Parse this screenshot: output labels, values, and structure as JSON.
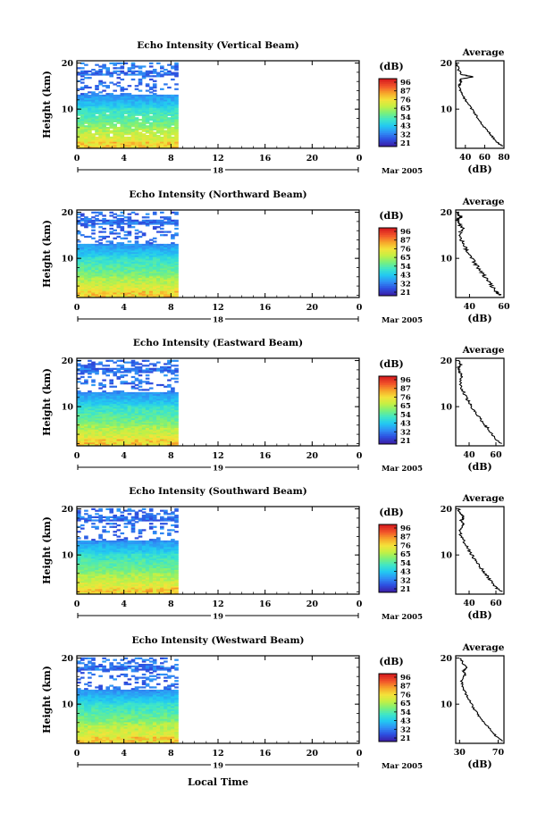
{
  "figure": {
    "x_axis_label": "Local Time",
    "month_label": "Mar 2005",
    "colorbar_unit": "(dB)",
    "colormap": [
      "#3b1fa8",
      "#2d4fe0",
      "#2f8ff5",
      "#22c8f2",
      "#3fe6c8",
      "#7bf07a",
      "#c6f043",
      "#f5e23a",
      "#f7a52a",
      "#f2552a",
      "#d81f1f"
    ]
  },
  "chart_data": [
    {
      "type": "heatmap",
      "title": "Echo Intensity (Vertical Beam)",
      "ylabel": "Height (km)",
      "x_ticks": [
        "0",
        "4",
        "8",
        "12",
        "16",
        "20",
        "0"
      ],
      "y_ticks": [
        "20",
        "10"
      ],
      "date_label": "18",
      "colorbar_ticks": [
        "96",
        "87",
        "76",
        "65",
        "54",
        "43",
        "32",
        "21"
      ],
      "data_extent_hours": 8.6,
      "xlim": [
        0,
        24
      ],
      "ylim": [
        1.5,
        20.5
      ],
      "profile": {
        "title": "Average",
        "xlabel": "(dB)",
        "x_ticks": [
          "40",
          "60",
          "80"
        ],
        "xlim": [
          30,
          80
        ],
        "points": [
          [
            78,
            2
          ],
          [
            72,
            3
          ],
          [
            66,
            4.5
          ],
          [
            60,
            6
          ],
          [
            55,
            7.5
          ],
          [
            50,
            9
          ],
          [
            45,
            10.5
          ],
          [
            40,
            12
          ],
          [
            36,
            13.5
          ],
          [
            33,
            15
          ],
          [
            36,
            15.8
          ],
          [
            34,
            16.5
          ],
          [
            48,
            17
          ],
          [
            36,
            17.5
          ],
          [
            33,
            18.5
          ],
          [
            31,
            20
          ]
        ]
      }
    },
    {
      "type": "heatmap",
      "title": "Echo Intensity (Northward Beam)",
      "ylabel": "Height (km)",
      "x_ticks": [
        "0",
        "4",
        "8",
        "12",
        "16",
        "20",
        "0"
      ],
      "y_ticks": [
        "20",
        "10"
      ],
      "date_label": "18",
      "colorbar_ticks": [
        "96",
        "87",
        "76",
        "65",
        "54",
        "43",
        "32",
        "21"
      ],
      "data_extent_hours": 8.6,
      "xlim": [
        0,
        24
      ],
      "ylim": [
        1.5,
        20.5
      ],
      "profile": {
        "title": "Average",
        "xlabel": "(dB)",
        "x_ticks": [
          "40",
          "60"
        ],
        "xlim": [
          32,
          60
        ],
        "points": [
          [
            58,
            2
          ],
          [
            55,
            3
          ],
          [
            52,
            4.5
          ],
          [
            49,
            6
          ],
          [
            46,
            7.5
          ],
          [
            43,
            9
          ],
          [
            41,
            10.5
          ],
          [
            38,
            12
          ],
          [
            36,
            13.5
          ],
          [
            34,
            15
          ],
          [
            36,
            16.5
          ],
          [
            34,
            17.5
          ],
          [
            33,
            18.5
          ],
          [
            35,
            19
          ],
          [
            33,
            20
          ]
        ]
      }
    },
    {
      "type": "heatmap",
      "title": "Echo Intensity (Eastward Beam)",
      "ylabel": "Height (km)",
      "x_ticks": [
        "0",
        "4",
        "8",
        "12",
        "16",
        "20",
        "0"
      ],
      "y_ticks": [
        "20",
        "10"
      ],
      "date_label": "19",
      "colorbar_ticks": [
        "96",
        "87",
        "76",
        "65",
        "54",
        "43",
        "32",
        "21"
      ],
      "data_extent_hours": 8.6,
      "xlim": [
        0,
        24
      ],
      "ylim": [
        1.5,
        20.5
      ],
      "profile": {
        "title": "Average",
        "xlabel": "(dB)",
        "x_ticks": [
          "40",
          "60"
        ],
        "xlim": [
          30,
          66
        ],
        "points": [
          [
            64,
            2
          ],
          [
            60,
            3
          ],
          [
            56,
            4.5
          ],
          [
            52,
            6
          ],
          [
            48,
            7.5
          ],
          [
            44,
            9
          ],
          [
            41,
            10.5
          ],
          [
            38,
            12
          ],
          [
            35,
            13.5
          ],
          [
            33,
            15
          ],
          [
            35,
            16.5
          ],
          [
            33,
            17.5
          ],
          [
            32,
            18.5
          ],
          [
            34,
            19
          ],
          [
            32,
            20
          ]
        ]
      }
    },
    {
      "type": "heatmap",
      "title": "Echo Intensity (Southward Beam)",
      "ylabel": "Height (km)",
      "x_ticks": [
        "0",
        "4",
        "8",
        "12",
        "16",
        "20",
        "0"
      ],
      "y_ticks": [
        "20",
        "10"
      ],
      "date_label": "19",
      "colorbar_ticks": [
        "96",
        "87",
        "76",
        "65",
        "54",
        "43",
        "32",
        "21"
      ],
      "data_extent_hours": 8.6,
      "xlim": [
        0,
        24
      ],
      "ylim": [
        1.5,
        20.5
      ],
      "profile": {
        "title": "Average",
        "xlabel": "(dB)",
        "x_ticks": [
          "40",
          "60"
        ],
        "xlim": [
          30,
          66
        ],
        "points": [
          [
            64,
            2
          ],
          [
            60,
            3
          ],
          [
            56,
            4.5
          ],
          [
            52,
            6
          ],
          [
            48,
            7.5
          ],
          [
            44,
            9
          ],
          [
            41,
            10.5
          ],
          [
            38,
            12
          ],
          [
            35,
            13.5
          ],
          [
            33,
            15
          ],
          [
            36,
            16.5
          ],
          [
            34,
            17.5
          ],
          [
            36,
            18.2
          ],
          [
            33,
            19
          ],
          [
            32,
            20
          ]
        ]
      }
    },
    {
      "type": "heatmap",
      "title": "Echo Intensity (Westward Beam)",
      "ylabel": "Height (km)",
      "x_ticks": [
        "0",
        "4",
        "8",
        "12",
        "16",
        "20",
        "0"
      ],
      "y_ticks": [
        "20",
        "10"
      ],
      "date_label": "19",
      "colorbar_ticks": [
        "96",
        "87",
        "76",
        "65",
        "54",
        "43",
        "32",
        "21"
      ],
      "data_extent_hours": 8.6,
      "xlim": [
        0,
        24
      ],
      "ylim": [
        1.5,
        20.5
      ],
      "profile": {
        "title": "Average",
        "xlabel": "(dB)",
        "x_ticks": [
          "30",
          "70"
        ],
        "xlim": [
          26,
          76
        ],
        "points": [
          [
            74,
            2
          ],
          [
            68,
            3
          ],
          [
            62,
            4.5
          ],
          [
            56,
            6
          ],
          [
            50,
            7.5
          ],
          [
            45,
            9
          ],
          [
            41,
            10.5
          ],
          [
            37,
            12
          ],
          [
            34,
            13.5
          ],
          [
            32,
            15
          ],
          [
            36,
            16.5
          ],
          [
            34,
            17.2
          ],
          [
            38,
            18
          ],
          [
            33,
            19
          ],
          [
            31,
            20
          ]
        ]
      }
    }
  ]
}
